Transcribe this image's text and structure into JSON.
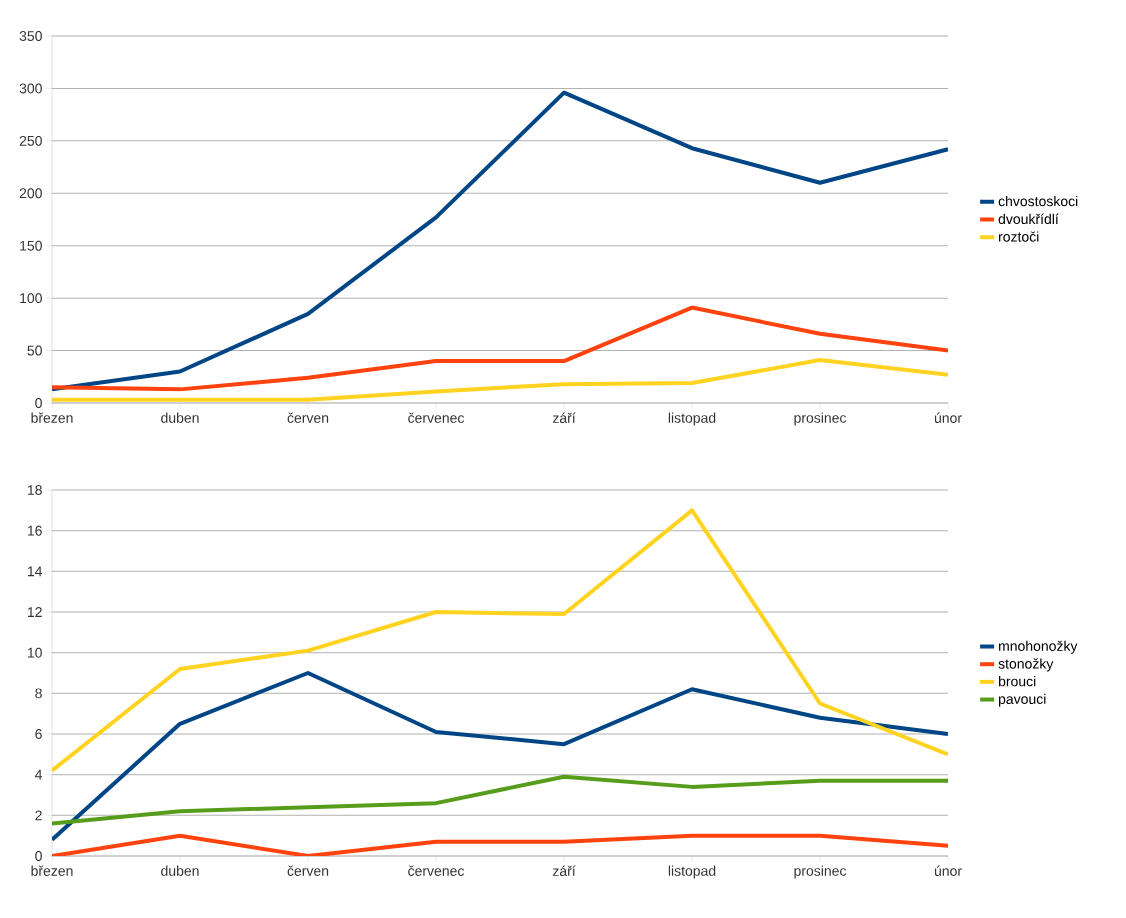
{
  "chart_data": [
    {
      "type": "line",
      "categories": [
        "březen",
        "duben",
        "červen",
        "červenec",
        "září",
        "listopad",
        "prosinec",
        "únor"
      ],
      "ylim": [
        0,
        350
      ],
      "yticks": [
        0,
        50,
        100,
        150,
        200,
        250,
        300,
        350
      ],
      "grid": "y",
      "legend": "right",
      "series": [
        {
          "name": "chvostoskoci",
          "color": "#004586",
          "values": [
            13,
            30,
            85,
            177,
            296,
            243,
            210,
            242
          ]
        },
        {
          "name": "dvoukřídlí",
          "color": "#ff420e",
          "values": [
            15,
            13,
            24,
            40,
            40,
            91,
            66,
            50
          ]
        },
        {
          "name": "roztoči",
          "color": "#ffd320",
          "values": [
            3,
            3,
            3,
            11,
            18,
            19,
            41,
            27
          ]
        }
      ]
    },
    {
      "type": "line",
      "categories": [
        "březen",
        "duben",
        "červen",
        "červenec",
        "září",
        "listopad",
        "prosinec",
        "únor"
      ],
      "ylim": [
        0,
        18
      ],
      "yticks": [
        0,
        2,
        4,
        6,
        8,
        10,
        12,
        14,
        16,
        18
      ],
      "grid": "y",
      "legend": "right",
      "series": [
        {
          "name": "mnohonožky",
          "color": "#004586",
          "values": [
            0.8,
            6.5,
            9,
            6.1,
            5.5,
            8.2,
            6.8,
            6
          ]
        },
        {
          "name": "stonožky",
          "color": "#ff420e",
          "values": [
            0,
            1,
            0,
            0.7,
            0.7,
            1,
            1,
            0.5
          ]
        },
        {
          "name": "brouci",
          "color": "#ffd320",
          "values": [
            4.2,
            9.2,
            10.1,
            12,
            11.9,
            17,
            7.5,
            5
          ]
        },
        {
          "name": "pavouci",
          "color": "#579d1c",
          "values": [
            1.6,
            2.2,
            2.4,
            2.6,
            3.9,
            3.4,
            3.7,
            3.7
          ]
        }
      ]
    }
  ]
}
